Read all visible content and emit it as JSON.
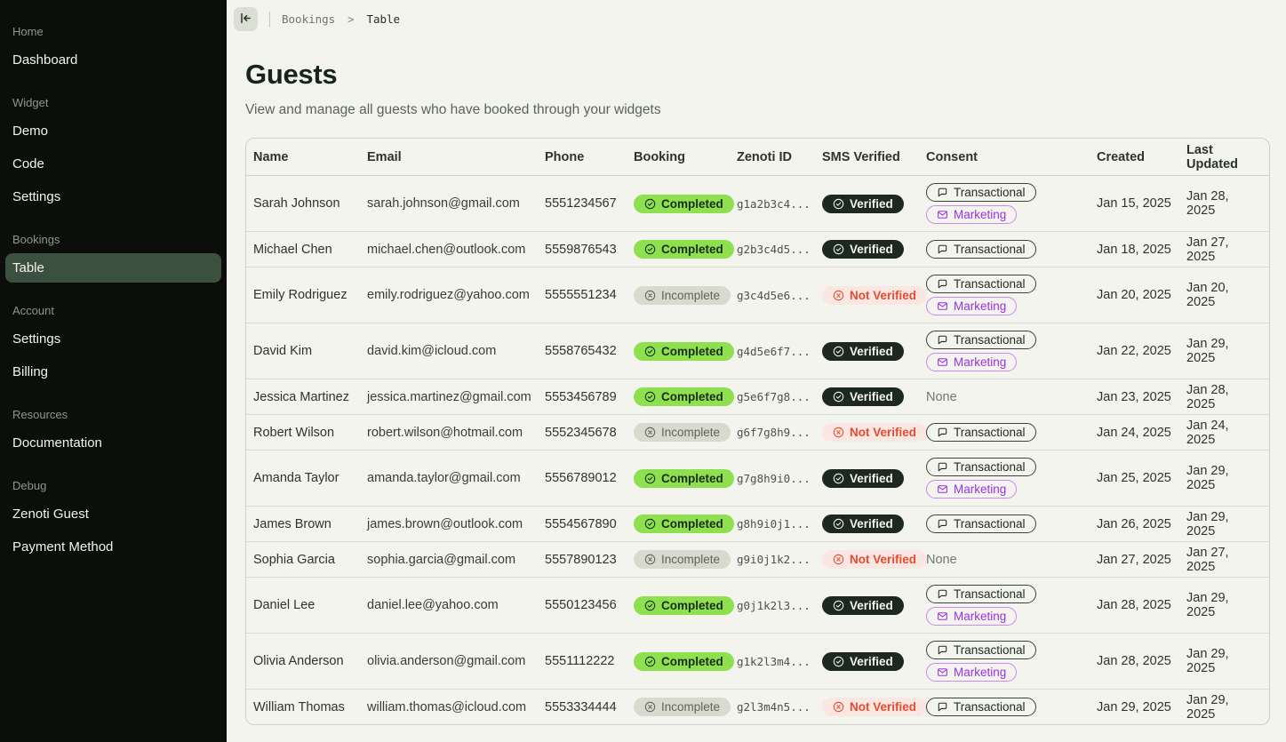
{
  "sidebar": {
    "sections": [
      {
        "label": "Home",
        "items": [
          {
            "label": "Dashboard",
            "active": false
          }
        ]
      },
      {
        "label": "Widget",
        "items": [
          {
            "label": "Demo",
            "active": false
          },
          {
            "label": "Code",
            "active": false
          },
          {
            "label": "Settings",
            "active": false
          }
        ]
      },
      {
        "label": "Bookings",
        "items": [
          {
            "label": "Table",
            "active": true
          }
        ]
      },
      {
        "label": "Account",
        "items": [
          {
            "label": "Settings",
            "active": false
          },
          {
            "label": "Billing",
            "active": false
          }
        ]
      },
      {
        "label": "Resources",
        "items": [
          {
            "label": "Documentation",
            "active": false
          }
        ]
      },
      {
        "label": "Debug",
        "items": [
          {
            "label": "Zenoti Guest",
            "active": false
          },
          {
            "label": "Payment Method",
            "active": false
          }
        ]
      }
    ]
  },
  "header": {
    "breadcrumb": {
      "parent": "Bookings",
      "separator": ">",
      "current": "Table"
    },
    "title": "Guests",
    "subtitle": "View and manage all guests who have booked through your widgets"
  },
  "table": {
    "columns": [
      "Name",
      "Email",
      "Phone",
      "Booking",
      "Zenoti ID",
      "SMS Verified",
      "Consent",
      "Created",
      "Last Updated"
    ],
    "badge_labels": {
      "completed": "Completed",
      "incomplete": "Incomplete",
      "verified": "Verified",
      "not_verified": "Not Verified",
      "transactional": "Transactional",
      "marketing": "Marketing",
      "none": "None"
    },
    "rows": [
      {
        "name": "Sarah Johnson",
        "email": "sarah.johnson@gmail.com",
        "phone": "5551234567",
        "booking": "completed",
        "zenoti_id": "g1a2b3c4...",
        "sms_verified": true,
        "consent": [
          "transactional",
          "marketing"
        ],
        "created": "Jan 15, 2025",
        "last_updated": "Jan 28, 2025"
      },
      {
        "name": "Michael Chen",
        "email": "michael.chen@outlook.com",
        "phone": "5559876543",
        "booking": "completed",
        "zenoti_id": "g2b3c4d5...",
        "sms_verified": true,
        "consent": [
          "transactional"
        ],
        "created": "Jan 18, 2025",
        "last_updated": "Jan 27, 2025"
      },
      {
        "name": "Emily Rodriguez",
        "email": "emily.rodriguez@yahoo.com",
        "phone": "5555551234",
        "booking": "incomplete",
        "zenoti_id": "g3c4d5e6...",
        "sms_verified": false,
        "consent": [
          "transactional",
          "marketing"
        ],
        "created": "Jan 20, 2025",
        "last_updated": "Jan 20, 2025"
      },
      {
        "name": "David Kim",
        "email": "david.kim@icloud.com",
        "phone": "5558765432",
        "booking": "completed",
        "zenoti_id": "g4d5e6f7...",
        "sms_verified": true,
        "consent": [
          "transactional",
          "marketing"
        ],
        "created": "Jan 22, 2025",
        "last_updated": "Jan 29, 2025"
      },
      {
        "name": "Jessica Martinez",
        "email": "jessica.martinez@gmail.com",
        "phone": "5553456789",
        "booking": "completed",
        "zenoti_id": "g5e6f7g8...",
        "sms_verified": true,
        "consent": [],
        "created": "Jan 23, 2025",
        "last_updated": "Jan 28, 2025"
      },
      {
        "name": "Robert Wilson",
        "email": "robert.wilson@hotmail.com",
        "phone": "5552345678",
        "booking": "incomplete",
        "zenoti_id": "g6f7g8h9...",
        "sms_verified": false,
        "consent": [
          "transactional"
        ],
        "created": "Jan 24, 2025",
        "last_updated": "Jan 24, 2025"
      },
      {
        "name": "Amanda Taylor",
        "email": "amanda.taylor@gmail.com",
        "phone": "5556789012",
        "booking": "completed",
        "zenoti_id": "g7g8h9i0...",
        "sms_verified": true,
        "consent": [
          "transactional",
          "marketing"
        ],
        "created": "Jan 25, 2025",
        "last_updated": "Jan 29, 2025"
      },
      {
        "name": "James Brown",
        "email": "james.brown@outlook.com",
        "phone": "5554567890",
        "booking": "completed",
        "zenoti_id": "g8h9i0j1...",
        "sms_verified": true,
        "consent": [
          "transactional"
        ],
        "created": "Jan 26, 2025",
        "last_updated": "Jan 29, 2025"
      },
      {
        "name": "Sophia Garcia",
        "email": "sophia.garcia@gmail.com",
        "phone": "5557890123",
        "booking": "incomplete",
        "zenoti_id": "g9i0j1k2...",
        "sms_verified": false,
        "consent": [],
        "created": "Jan 27, 2025",
        "last_updated": "Jan 27, 2025"
      },
      {
        "name": "Daniel Lee",
        "email": "daniel.lee@yahoo.com",
        "phone": "5550123456",
        "booking": "completed",
        "zenoti_id": "g0j1k2l3...",
        "sms_verified": true,
        "consent": [
          "transactional",
          "marketing"
        ],
        "created": "Jan 28, 2025",
        "last_updated": "Jan 29, 2025"
      },
      {
        "name": "Olivia Anderson",
        "email": "olivia.anderson@gmail.com",
        "phone": "5551112222",
        "booking": "completed",
        "zenoti_id": "g1k2l3m4...",
        "sms_verified": true,
        "consent": [
          "transactional",
          "marketing"
        ],
        "created": "Jan 28, 2025",
        "last_updated": "Jan 29, 2025"
      },
      {
        "name": "William Thomas",
        "email": "william.thomas@icloud.com",
        "phone": "5553334444",
        "booking": "incomplete",
        "zenoti_id": "g2l3m4n5...",
        "sms_verified": false,
        "consent": [
          "transactional"
        ],
        "created": "Jan 29, 2025",
        "last_updated": "Jan 29, 2025"
      }
    ]
  },
  "colors": {
    "sidebar_bg": "#0b0e0a",
    "sidebar_active_bg": "#3c5040",
    "page_bg": "#f3f4ed",
    "badge_completed_bg": "#8ee04f",
    "badge_incomplete_bg": "#d8dacd",
    "badge_verified_bg": "#1d2823",
    "badge_not_verified_bg": "#fbe7e2",
    "badge_not_verified_text": "#e54b31",
    "pill_marketing_text": "#9b30e3",
    "pill_marketing_border": "#cd87f3",
    "pill_transactional_border": "#39433b"
  }
}
